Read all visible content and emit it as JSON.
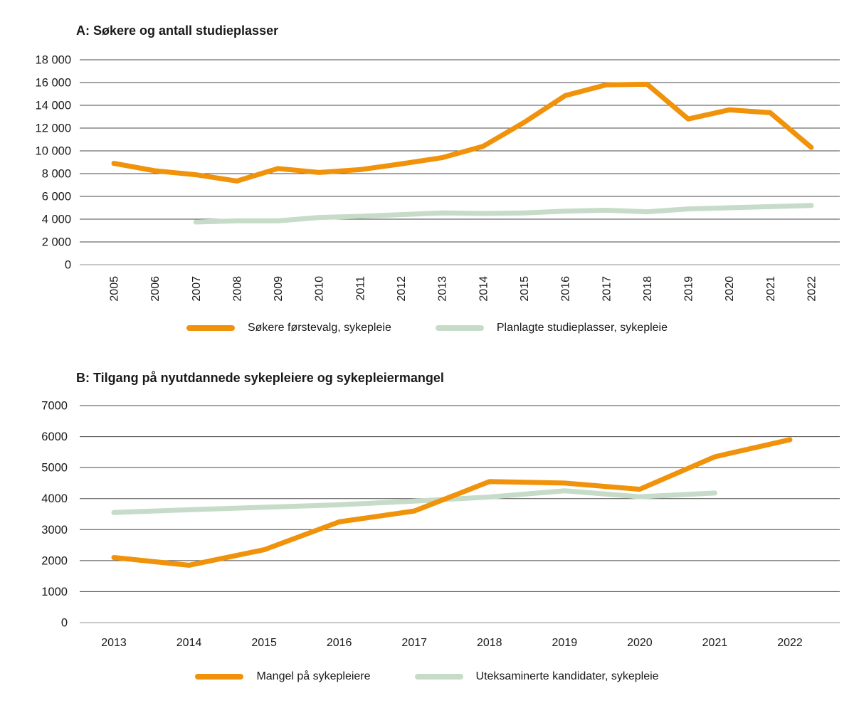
{
  "page": {
    "background": "#ffffff"
  },
  "colors": {
    "orange": "#F0920A",
    "green": "#C6DCC9",
    "grid": "#4a4a4a",
    "zero_line": "#8f8f8f",
    "text": "#1a1a1a"
  },
  "chart_data": [
    {
      "type": "line",
      "title": "A: Søkere og antall studieplasser",
      "x": [
        "2005",
        "2006",
        "2007",
        "2008",
        "2009",
        "2010",
        "2011",
        "2012",
        "2013",
        "2014",
        "2015",
        "2016",
        "2017",
        "2018",
        "2019",
        "2020",
        "2021",
        "2022"
      ],
      "x_label_rotation": -90,
      "ylim": [
        0,
        18000
      ],
      "grid": true,
      "legend_position": "bottom",
      "yticks": {
        "values": [
          0,
          2000,
          4000,
          6000,
          8000,
          10000,
          12000,
          14000,
          16000,
          18000
        ],
        "labels": [
          "0",
          "2 000",
          "4 000",
          "6 000",
          "8 000",
          "10 000",
          "12 000",
          "14 000",
          "16 000",
          "18 000"
        ]
      },
      "series": [
        {
          "name": "Søkere førstevalg, sykepleie",
          "color": "orange",
          "values": [
            8900,
            8250,
            7900,
            7350,
            8450,
            8100,
            8350,
            8850,
            9400,
            10400,
            12500,
            14850,
            15800,
            15850,
            12800,
            13600,
            13350,
            10300
          ]
        },
        {
          "name": "Planlagte studieplasser, sykepleie",
          "color": "green",
          "values": [
            null,
            null,
            3750,
            3850,
            3850,
            4150,
            4250,
            4400,
            4550,
            4500,
            4550,
            4700,
            4780,
            4650,
            4900,
            5000,
            5100,
            5200
          ]
        }
      ]
    },
    {
      "type": "line",
      "title": "B: Tilgang på nyutdannede sykepleiere og sykepleiermangel",
      "x": [
        "2013",
        "2014",
        "2015",
        "2016",
        "2017",
        "2018",
        "2019",
        "2020",
        "2021",
        "2022"
      ],
      "x_label_rotation": 0,
      "ylim": [
        0,
        7000
      ],
      "grid": true,
      "legend_position": "bottom",
      "yticks": {
        "values": [
          0,
          1000,
          2000,
          3000,
          4000,
          5000,
          6000,
          7000
        ],
        "labels": [
          "0",
          "1000",
          "2000",
          "3000",
          "4000",
          "5000",
          "6000",
          "7000"
        ]
      },
      "series": [
        {
          "name": "Mangel på sykepleiere",
          "color": "orange",
          "values": [
            2100,
            1850,
            2350,
            3250,
            3600,
            4550,
            4500,
            4300,
            5350,
            5900
          ]
        },
        {
          "name": "Uteksaminerte kandidater, sykepleie",
          "color": "green",
          "values": [
            3550,
            3640,
            3720,
            3800,
            3920,
            4050,
            4250,
            4060,
            4180,
            null
          ]
        }
      ]
    }
  ]
}
